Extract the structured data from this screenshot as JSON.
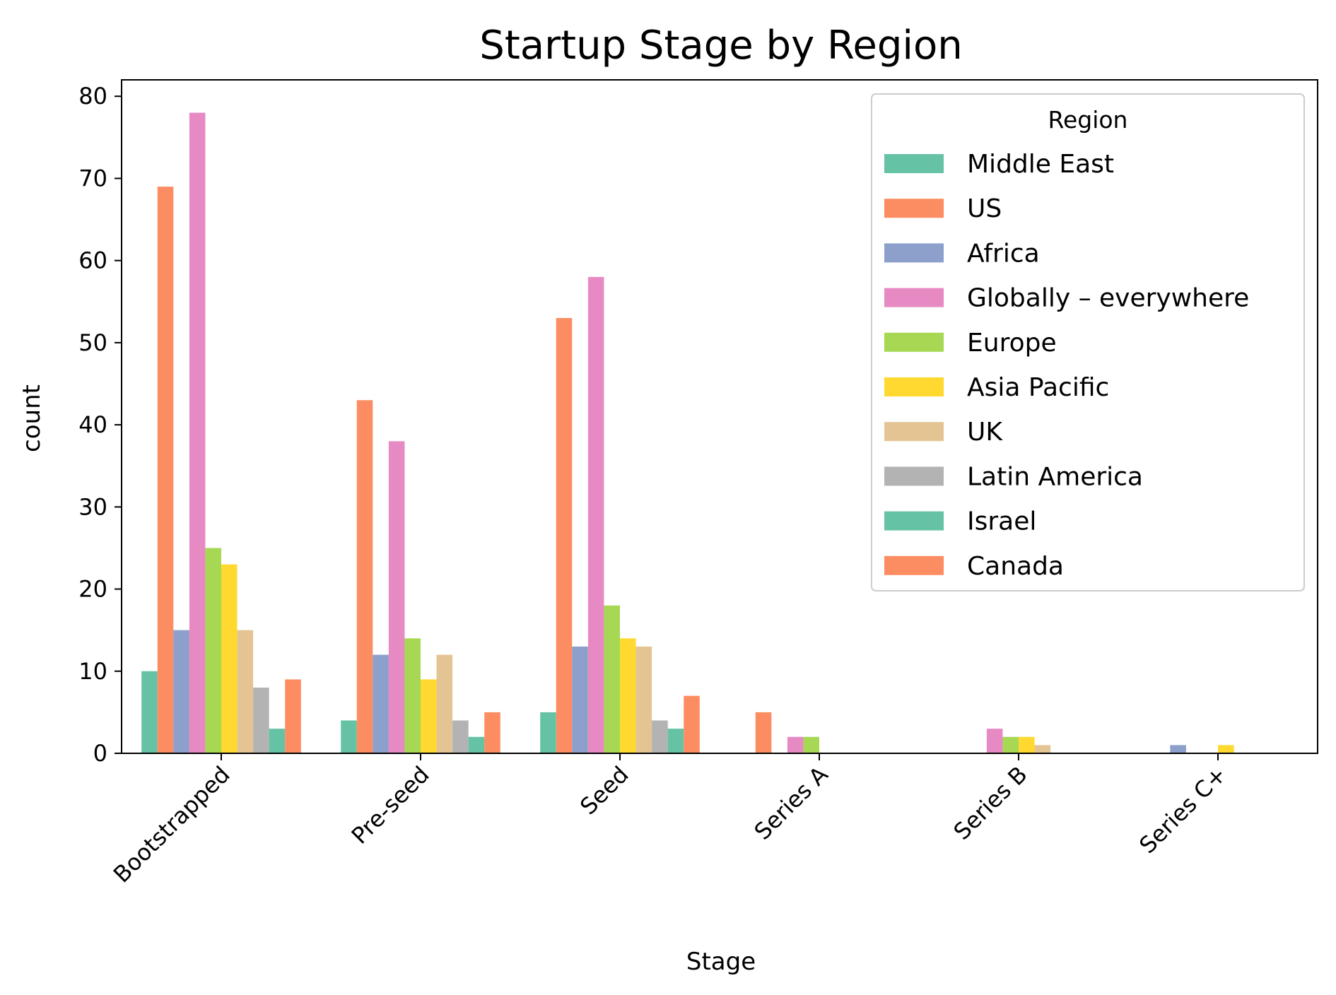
{
  "chart_data": {
    "type": "bar",
    "title": "Startup Stage by Region",
    "xlabel": "Stage",
    "ylabel": "count",
    "ylim": [
      0,
      82
    ],
    "yticks": [
      0,
      10,
      20,
      30,
      40,
      50,
      60,
      70,
      80
    ],
    "grid": false,
    "legend": {
      "title": "Region",
      "placement": "top-right"
    },
    "categories": [
      "Bootstrapped",
      "Pre-seed",
      "Seed",
      "Series A",
      "Series B",
      "Series C+"
    ],
    "series": [
      {
        "name": "Middle East",
        "color": "#66c2a5",
        "values": [
          10,
          4,
          5,
          0,
          0,
          0
        ]
      },
      {
        "name": "US",
        "color": "#fc8d62",
        "values": [
          69,
          43,
          53,
          5,
          0,
          0
        ]
      },
      {
        "name": "Africa",
        "color": "#8da0cb",
        "values": [
          15,
          12,
          13,
          0,
          0,
          1
        ]
      },
      {
        "name": "Globally – everywhere",
        "color": "#e78ac3",
        "values": [
          78,
          38,
          58,
          2,
          3,
          0
        ]
      },
      {
        "name": "Europe",
        "color": "#a6d854",
        "values": [
          25,
          14,
          18,
          2,
          2,
          0
        ]
      },
      {
        "name": "Asia Pacific",
        "color": "#ffd92f",
        "values": [
          23,
          9,
          14,
          0,
          2,
          1
        ]
      },
      {
        "name": "UK",
        "color": "#e5c494",
        "values": [
          15,
          12,
          13,
          0,
          1,
          0
        ]
      },
      {
        "name": "Latin America",
        "color": "#b3b3b3",
        "values": [
          8,
          4,
          4,
          0,
          0,
          0
        ]
      },
      {
        "name": "Israel",
        "color": "#66c2a5",
        "values": [
          3,
          2,
          3,
          0,
          0,
          0
        ]
      },
      {
        "name": "Canada",
        "color": "#fc8d62",
        "values": [
          9,
          5,
          7,
          0,
          0,
          0
        ]
      }
    ]
  }
}
